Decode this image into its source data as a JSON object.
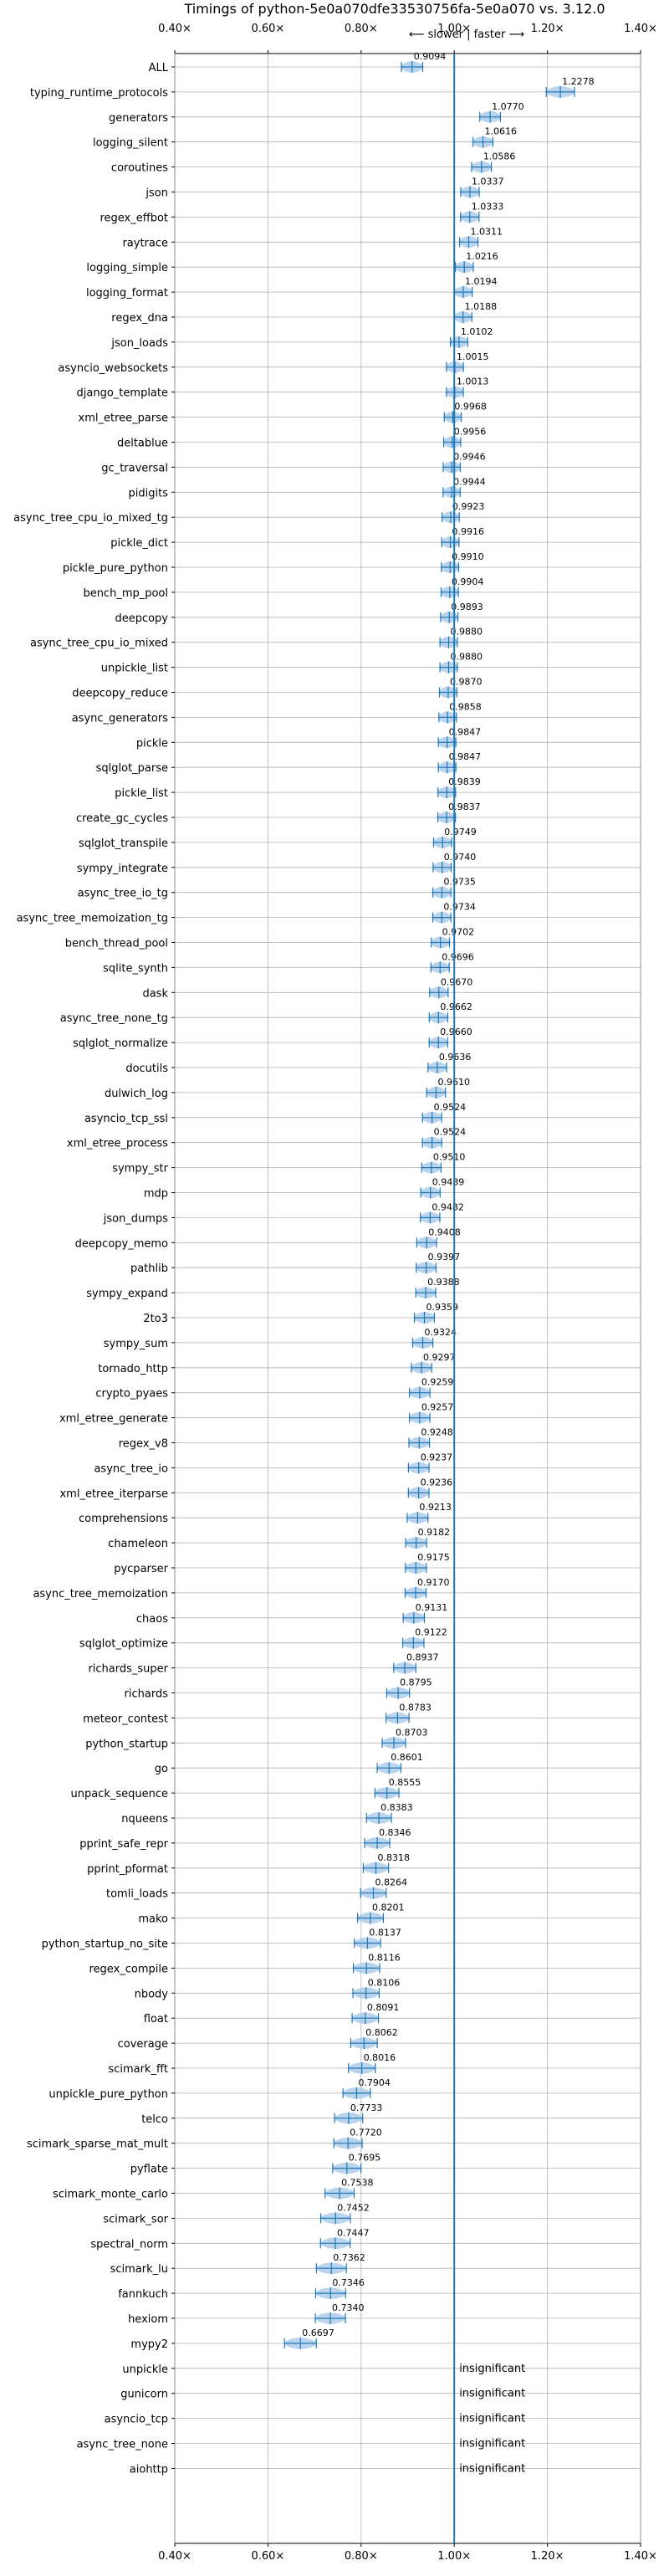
{
  "chart_data": {
    "type": "violin",
    "title": "Timings of python-5e0a070dfe33530756fa-5e0a070 vs. 3.12.0",
    "axis_annotation": "⟵ slower | faster ⟶",
    "xlabel": "",
    "ylabel": "",
    "xlim": [
      0.4,
      1.4
    ],
    "x_ticks": [
      0.4,
      0.6,
      0.8,
      1.0,
      1.2,
      1.4
    ],
    "x_tick_labels": [
      "0.40×",
      "0.60×",
      "0.80×",
      "1.00×",
      "1.20×",
      "1.40×"
    ],
    "reference_line": 1.0,
    "grid": true,
    "benchmarks": [
      {
        "name": "ALL",
        "label": "0.9094",
        "value": 0.9094
      },
      {
        "name": "typing_runtime_protocols",
        "label": "1.2278",
        "value": 1.2278
      },
      {
        "name": "generators",
        "label": "1.0770",
        "value": 1.077
      },
      {
        "name": "logging_silent",
        "label": "1.0616",
        "value": 1.0616
      },
      {
        "name": "coroutines",
        "label": "1.0586",
        "value": 1.0586
      },
      {
        "name": "json",
        "label": "1.0337",
        "value": 1.0337
      },
      {
        "name": "regex_effbot",
        "label": "1.0333",
        "value": 1.0333
      },
      {
        "name": "raytrace",
        "label": "1.0311",
        "value": 1.0311
      },
      {
        "name": "logging_simple",
        "label": "1.0216",
        "value": 1.0216
      },
      {
        "name": "logging_format",
        "label": "1.0194",
        "value": 1.0194
      },
      {
        "name": "regex_dna",
        "label": "1.0188",
        "value": 1.0188
      },
      {
        "name": "json_loads",
        "label": "1.0102",
        "value": 1.0102
      },
      {
        "name": "asyncio_websockets",
        "label": "1.0015",
        "value": 1.0015
      },
      {
        "name": "django_template",
        "label": "1.0013",
        "value": 1.0013
      },
      {
        "name": "xml_etree_parse",
        "label": "0.9968",
        "value": 0.9968
      },
      {
        "name": "deltablue",
        "label": "0.9956",
        "value": 0.9956
      },
      {
        "name": "gc_traversal",
        "label": "0.9946",
        "value": 0.9946
      },
      {
        "name": "pidigits",
        "label": "0.9944",
        "value": 0.9944
      },
      {
        "name": "async_tree_cpu_io_mixed_tg",
        "label": "0.9923",
        "value": 0.9923
      },
      {
        "name": "pickle_dict",
        "label": "0.9916",
        "value": 0.9916
      },
      {
        "name": "pickle_pure_python",
        "label": "0.9910",
        "value": 0.991
      },
      {
        "name": "bench_mp_pool",
        "label": "0.9904",
        "value": 0.9904
      },
      {
        "name": "deepcopy",
        "label": "0.9893",
        "value": 0.9893
      },
      {
        "name": "async_tree_cpu_io_mixed",
        "label": "0.9880",
        "value": 0.988
      },
      {
        "name": "unpickle_list",
        "label": "0.9880",
        "value": 0.988
      },
      {
        "name": "deepcopy_reduce",
        "label": "0.9870",
        "value": 0.987
      },
      {
        "name": "async_generators",
        "label": "0.9858",
        "value": 0.9858
      },
      {
        "name": "pickle",
        "label": "0.9847",
        "value": 0.9847
      },
      {
        "name": "sqlglot_parse",
        "label": "0.9847",
        "value": 0.9847
      },
      {
        "name": "pickle_list",
        "label": "0.9839",
        "value": 0.9839
      },
      {
        "name": "create_gc_cycles",
        "label": "0.9837",
        "value": 0.9837
      },
      {
        "name": "sqlglot_transpile",
        "label": "0.9749",
        "value": 0.9749
      },
      {
        "name": "sympy_integrate",
        "label": "0.9740",
        "value": 0.974
      },
      {
        "name": "async_tree_io_tg",
        "label": "0.9735",
        "value": 0.9735
      },
      {
        "name": "async_tree_memoization_tg",
        "label": "0.9734",
        "value": 0.9734
      },
      {
        "name": "bench_thread_pool",
        "label": "0.9702",
        "value": 0.9702
      },
      {
        "name": "sqlite_synth",
        "label": "0.9696",
        "value": 0.9696
      },
      {
        "name": "dask",
        "label": "0.9670",
        "value": 0.967
      },
      {
        "name": "async_tree_none_tg",
        "label": "0.9662",
        "value": 0.9662
      },
      {
        "name": "sqlglot_normalize",
        "label": "0.9660",
        "value": 0.966
      },
      {
        "name": "docutils",
        "label": "0.9636",
        "value": 0.9636
      },
      {
        "name": "dulwich_log",
        "label": "0.9610",
        "value": 0.961
      },
      {
        "name": "asyncio_tcp_ssl",
        "label": "0.9524",
        "value": 0.9524
      },
      {
        "name": "xml_etree_process",
        "label": "0.9524",
        "value": 0.9524
      },
      {
        "name": "sympy_str",
        "label": "0.9510",
        "value": 0.951
      },
      {
        "name": "mdp",
        "label": "0.9489",
        "value": 0.9489
      },
      {
        "name": "json_dumps",
        "label": "0.9482",
        "value": 0.9482
      },
      {
        "name": "deepcopy_memo",
        "label": "0.9408",
        "value": 0.9408
      },
      {
        "name": "pathlib",
        "label": "0.9397",
        "value": 0.9397
      },
      {
        "name": "sympy_expand",
        "label": "0.9388",
        "value": 0.9388
      },
      {
        "name": "2to3",
        "label": "0.9359",
        "value": 0.9359
      },
      {
        "name": "sympy_sum",
        "label": "0.9324",
        "value": 0.9324
      },
      {
        "name": "tornado_http",
        "label": "0.9297",
        "value": 0.9297
      },
      {
        "name": "crypto_pyaes",
        "label": "0.9259",
        "value": 0.9259
      },
      {
        "name": "xml_etree_generate",
        "label": "0.9257",
        "value": 0.9257
      },
      {
        "name": "regex_v8",
        "label": "0.9248",
        "value": 0.9248
      },
      {
        "name": "async_tree_io",
        "label": "0.9237",
        "value": 0.9237
      },
      {
        "name": "xml_etree_iterparse",
        "label": "0.9236",
        "value": 0.9236
      },
      {
        "name": "comprehensions",
        "label": "0.9213",
        "value": 0.9213
      },
      {
        "name": "chameleon",
        "label": "0.9182",
        "value": 0.9182
      },
      {
        "name": "pycparser",
        "label": "0.9175",
        "value": 0.9175
      },
      {
        "name": "async_tree_memoization",
        "label": "0.9170",
        "value": 0.917
      },
      {
        "name": "chaos",
        "label": "0.9131",
        "value": 0.9131
      },
      {
        "name": "sqlglot_optimize",
        "label": "0.9122",
        "value": 0.9122
      },
      {
        "name": "richards_super",
        "label": "0.8937",
        "value": 0.8937
      },
      {
        "name": "richards",
        "label": "0.8795",
        "value": 0.8795
      },
      {
        "name": "meteor_contest",
        "label": "0.8783",
        "value": 0.8783
      },
      {
        "name": "python_startup",
        "label": "0.8703",
        "value": 0.8703
      },
      {
        "name": "go",
        "label": "0.8601",
        "value": 0.8601
      },
      {
        "name": "unpack_sequence",
        "label": "0.8555",
        "value": 0.8555
      },
      {
        "name": "nqueens",
        "label": "0.8383",
        "value": 0.8383
      },
      {
        "name": "pprint_safe_repr",
        "label": "0.8346",
        "value": 0.8346
      },
      {
        "name": "pprint_pformat",
        "label": "0.8318",
        "value": 0.8318
      },
      {
        "name": "tomli_loads",
        "label": "0.8264",
        "value": 0.8264
      },
      {
        "name": "mako",
        "label": "0.8201",
        "value": 0.8201
      },
      {
        "name": "python_startup_no_site",
        "label": "0.8137",
        "value": 0.8137
      },
      {
        "name": "regex_compile",
        "label": "0.8116",
        "value": 0.8116
      },
      {
        "name": "nbody",
        "label": "0.8106",
        "value": 0.8106
      },
      {
        "name": "float",
        "label": "0.8091",
        "value": 0.8091
      },
      {
        "name": "coverage",
        "label": "0.8062",
        "value": 0.8062
      },
      {
        "name": "scimark_fft",
        "label": "0.8016",
        "value": 0.8016
      },
      {
        "name": "unpickle_pure_python",
        "label": "0.7904",
        "value": 0.7904
      },
      {
        "name": "telco",
        "label": "0.7733",
        "value": 0.7733
      },
      {
        "name": "scimark_sparse_mat_mult",
        "label": "0.7720",
        "value": 0.772
      },
      {
        "name": "pyflate",
        "label": "0.7695",
        "value": 0.7695
      },
      {
        "name": "scimark_monte_carlo",
        "label": "0.7538",
        "value": 0.7538
      },
      {
        "name": "scimark_sor",
        "label": "0.7452",
        "value": 0.7452
      },
      {
        "name": "spectral_norm",
        "label": "0.7447",
        "value": 0.7447
      },
      {
        "name": "scimark_lu",
        "label": "0.7362",
        "value": 0.7362
      },
      {
        "name": "fannkuch",
        "label": "0.7346",
        "value": 0.7346
      },
      {
        "name": "hexiom",
        "label": "0.7340",
        "value": 0.734
      },
      {
        "name": "mypy2",
        "label": "0.6697",
        "value": 0.6697
      },
      {
        "name": "unpickle",
        "label": "insignificant",
        "value": null
      },
      {
        "name": "gunicorn",
        "label": "insignificant",
        "value": null
      },
      {
        "name": "asyncio_tcp",
        "label": "insignificant",
        "value": null
      },
      {
        "name": "async_tree_none",
        "label": "insignificant",
        "value": null
      },
      {
        "name": "aiohttp",
        "label": "insignificant",
        "value": null
      }
    ],
    "colors": {
      "violin": "#a9c9e8",
      "whisker": "#1f77b4",
      "reference": "#1f77b4",
      "grid": "#b0b0b0",
      "highlight": "#e07070"
    }
  }
}
